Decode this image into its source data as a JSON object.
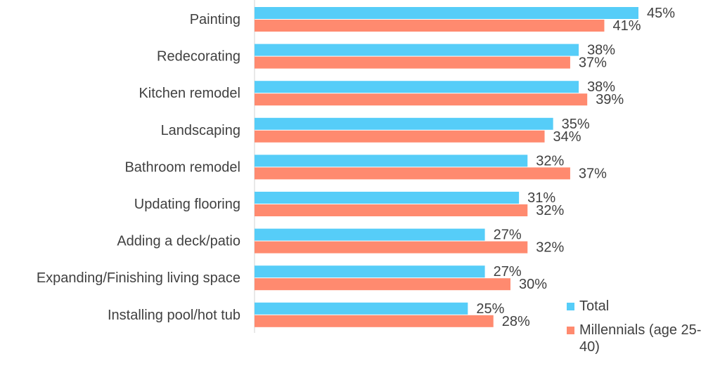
{
  "chart_data": {
    "type": "bar",
    "orientation": "horizontal",
    "categories": [
      "Painting",
      "Redecorating",
      "Kitchen remodel",
      "Landscaping",
      "Bathroom remodel",
      "Updating flooring",
      "Adding a deck/patio",
      "Expanding/Finishing living space",
      "Installing pool/hot tub"
    ],
    "series": [
      {
        "name": "Total",
        "color": "#56CDF8",
        "values": [
          45,
          38,
          38,
          35,
          32,
          31,
          27,
          27,
          25
        ]
      },
      {
        "name": "Millennials (age 25-40)",
        "color": "#FF8A6F",
        "values": [
          41,
          37,
          39,
          34,
          37,
          32,
          32,
          30,
          28
        ]
      }
    ],
    "value_suffix": "%",
    "xlim": [
      0,
      45
    ],
    "grid": false,
    "legend_position": "bottom-right"
  },
  "legend": {
    "items": [
      "Total",
      "Millennials (age 25-40)"
    ]
  }
}
